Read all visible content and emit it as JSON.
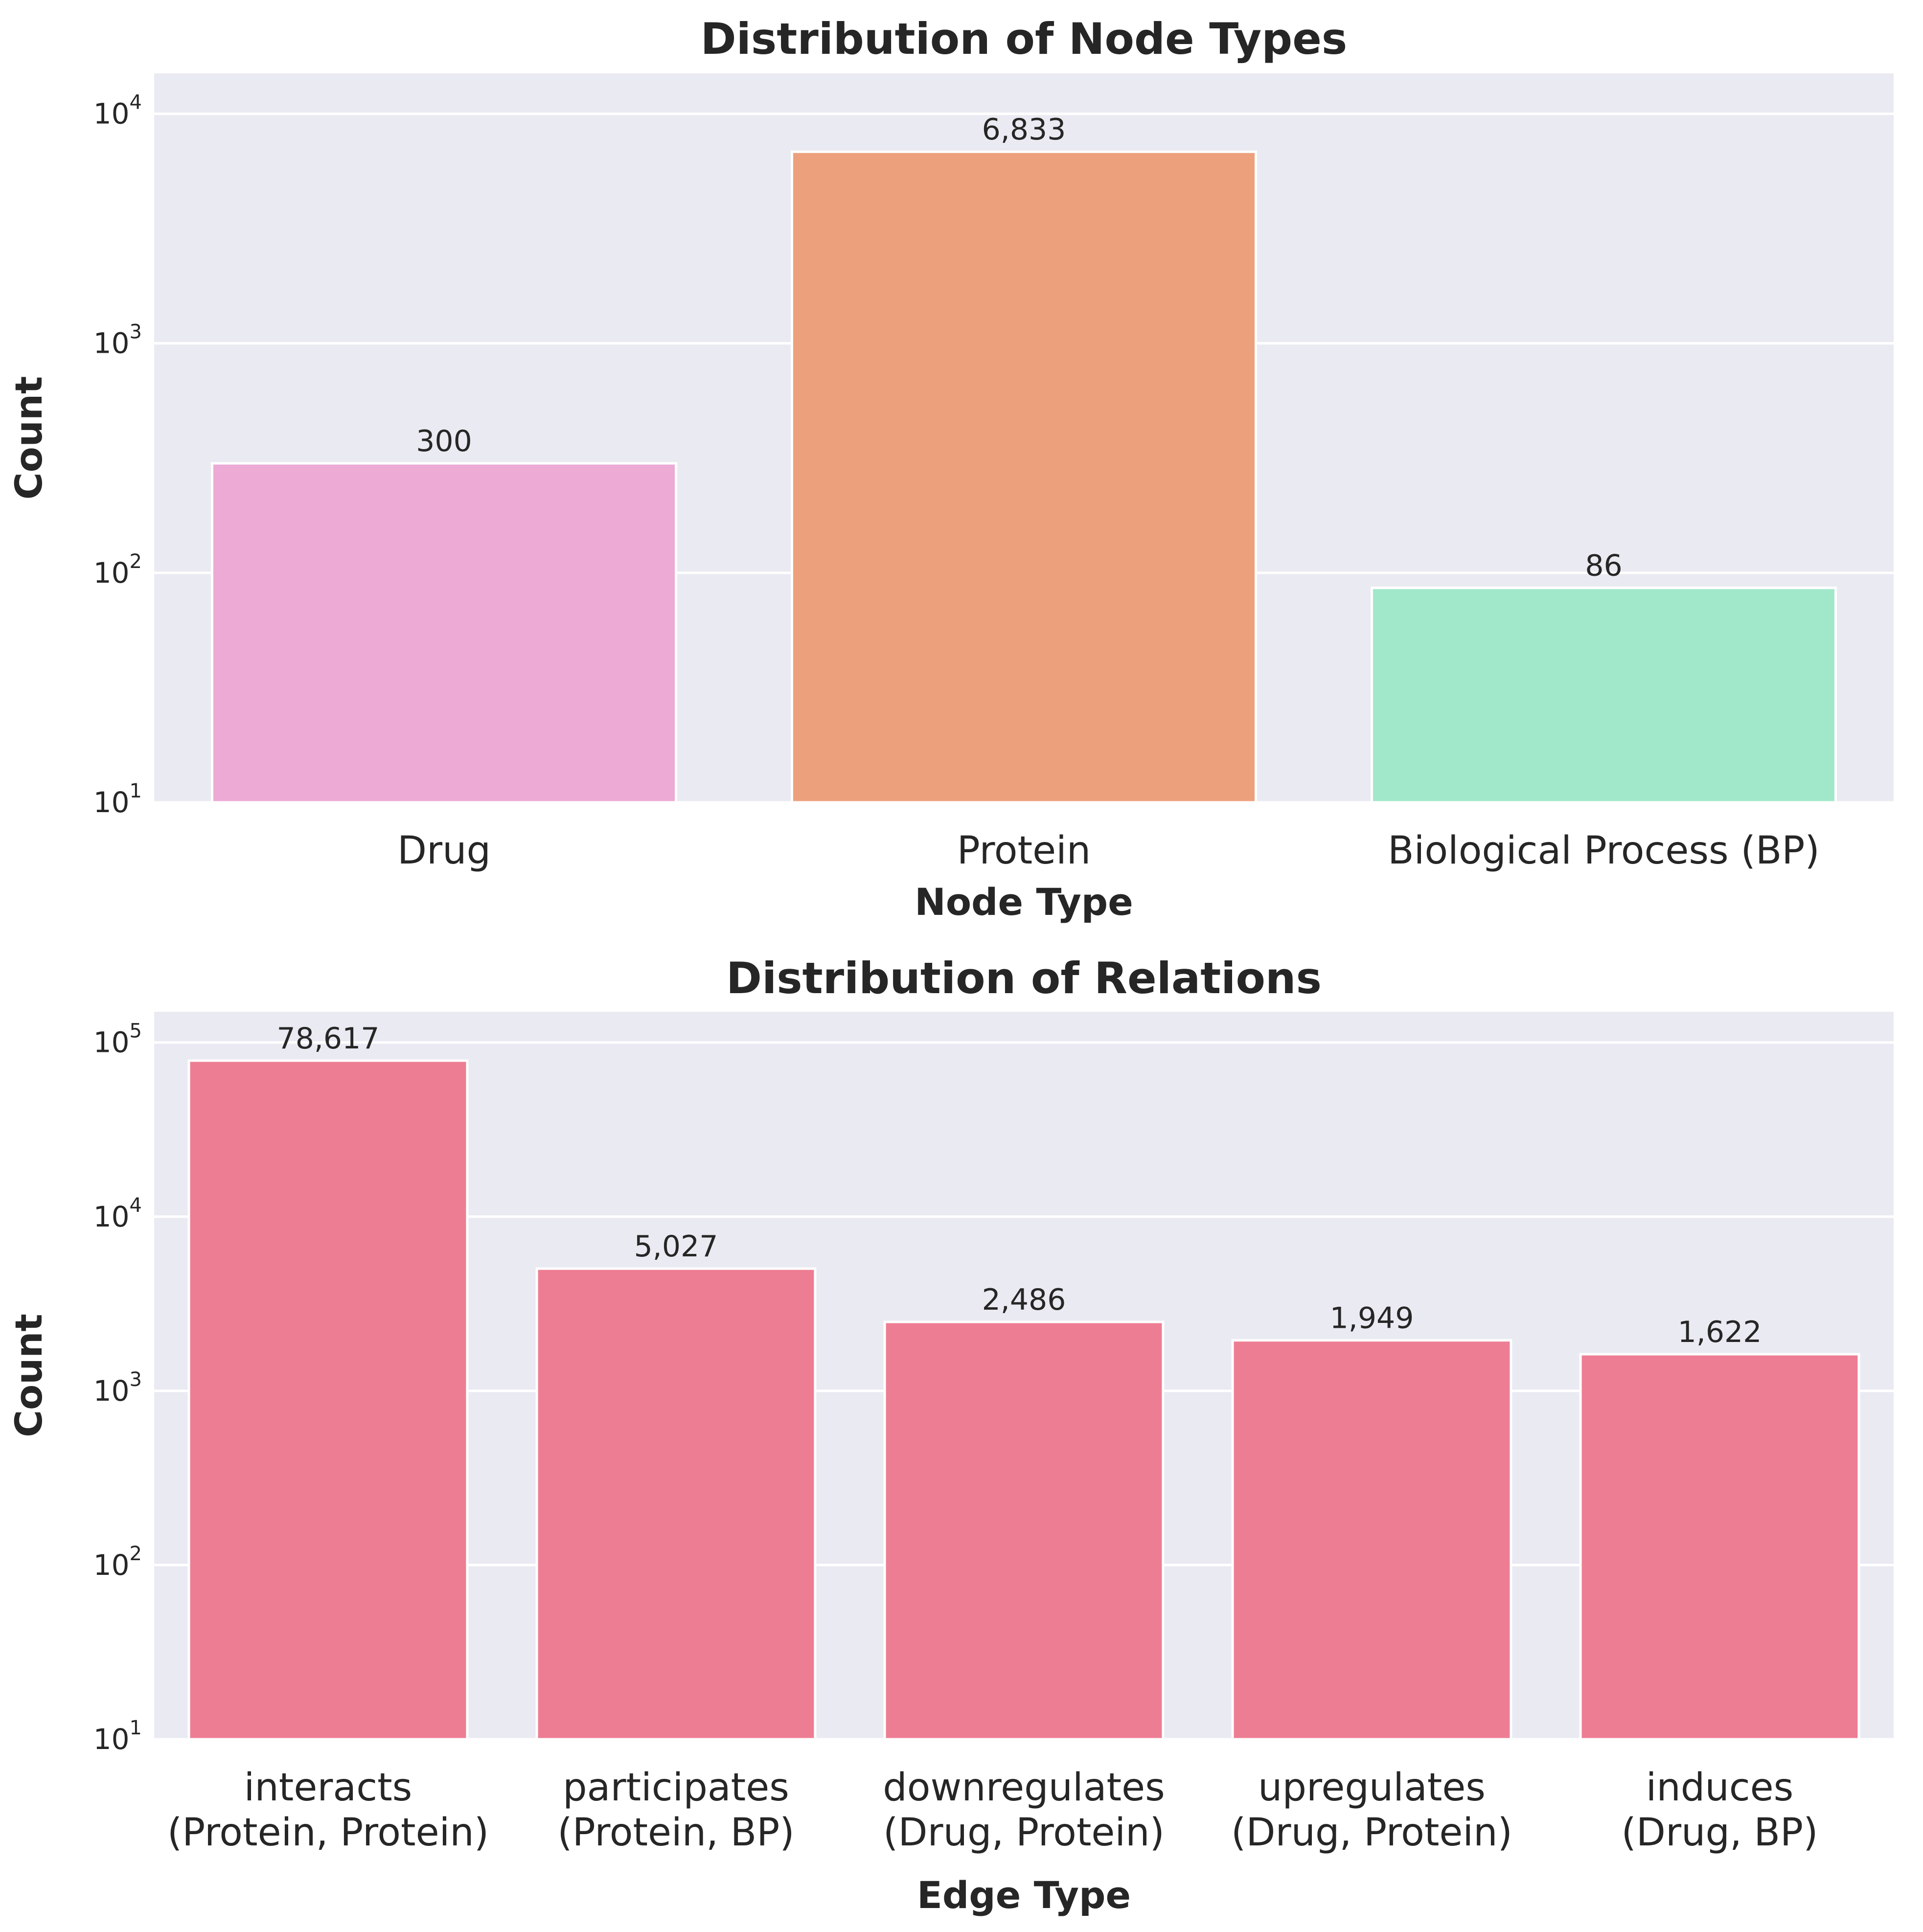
{
  "colors": {
    "plot_background": "#eaeaf2",
    "grid": "#ffffff",
    "text": "#262626"
  },
  "chart_data": [
    {
      "type": "bar",
      "title": "Distribution of Node Types",
      "xlabel": "Node Type",
      "ylabel": "Count",
      "yscale": "log",
      "ylim": [
        10,
        15000
      ],
      "yticks": [
        10,
        100,
        1000,
        10000
      ],
      "ytick_labels": [
        {
          "base": "10",
          "exp": "1"
        },
        {
          "base": "10",
          "exp": "2"
        },
        {
          "base": "10",
          "exp": "3"
        },
        {
          "base": "10",
          "exp": "4"
        }
      ],
      "grid": true,
      "categories": [
        [
          "Drug"
        ],
        [
          "Protein"
        ],
        [
          "Biological Process (BP)"
        ]
      ],
      "values": [
        300,
        6833,
        86
      ],
      "value_labels": [
        "300",
        "6,833",
        "86"
      ],
      "bar_colors": [
        "#ecaad5",
        "#eca07c",
        "#a1e8ca"
      ]
    },
    {
      "type": "bar",
      "title": "Distribution of Relations",
      "xlabel": "Edge Type",
      "ylabel": "Count",
      "yscale": "log",
      "ylim": [
        10,
        150000
      ],
      "yticks": [
        10,
        100,
        1000,
        10000,
        100000
      ],
      "ytick_labels": [
        {
          "base": "10",
          "exp": "1"
        },
        {
          "base": "10",
          "exp": "2"
        },
        {
          "base": "10",
          "exp": "3"
        },
        {
          "base": "10",
          "exp": "4"
        },
        {
          "base": "10",
          "exp": "5"
        }
      ],
      "grid": true,
      "categories": [
        [
          "interacts",
          "(Protein, Protein)"
        ],
        [
          "participates",
          "(Protein, BP)"
        ],
        [
          "downregulates",
          "(Drug, Protein)"
        ],
        [
          "upregulates",
          "(Drug, Protein)"
        ],
        [
          "induces",
          "(Drug, BP)"
        ]
      ],
      "values": [
        78617,
        5027,
        2486,
        1949,
        1622
      ],
      "value_labels": [
        "78,617",
        "5,027",
        "2,486",
        "1,949",
        "1,622"
      ],
      "bar_colors": [
        "#ed7d93",
        "#ed7d93",
        "#ed7d93",
        "#ed7d93",
        "#ed7d93"
      ]
    }
  ]
}
